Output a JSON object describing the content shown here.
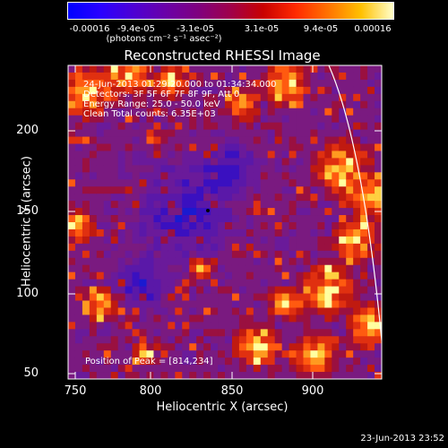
{
  "colorbar": {
    "tick_labels": [
      "-0.00016",
      "-9.4e-05",
      "-3.1e-05",
      "3.1e-05",
      "9.4e-05",
      "0.00016"
    ],
    "unit": "(photons cm⁻² s⁻¹ asec⁻²)"
  },
  "image": {
    "title": "Reconstructed RHESSI Image",
    "info_lines": [
      "24-Jun-2013 01:29:20.000 to 01:34:34.000",
      "Detectors: 3F 5F 6F 7F 8F 9F, Att 0",
      "Energy Range: 25.0 - 50.0 keV",
      "Clean    Total counts: 6.35E+03"
    ],
    "peak_text": "Position of Peak = [814,234]",
    "x_axis": {
      "label": "Heliocentric X (arcsec)",
      "ticks": [
        "750",
        "800",
        "850",
        "900"
      ]
    },
    "y_axis": {
      "label": "Heliocentric Y (arcsec)",
      "ticks": [
        "50",
        "100",
        "150",
        "200"
      ]
    }
  },
  "footer": {
    "date": "23-Jun-2013 23:52"
  },
  "colors": {
    "background": "#000000",
    "axis": "#ffffff",
    "cold": "#1a1ad0",
    "mid": "#6a1a9a",
    "hot": "#e03010",
    "hottest": "#ffd040"
  }
}
